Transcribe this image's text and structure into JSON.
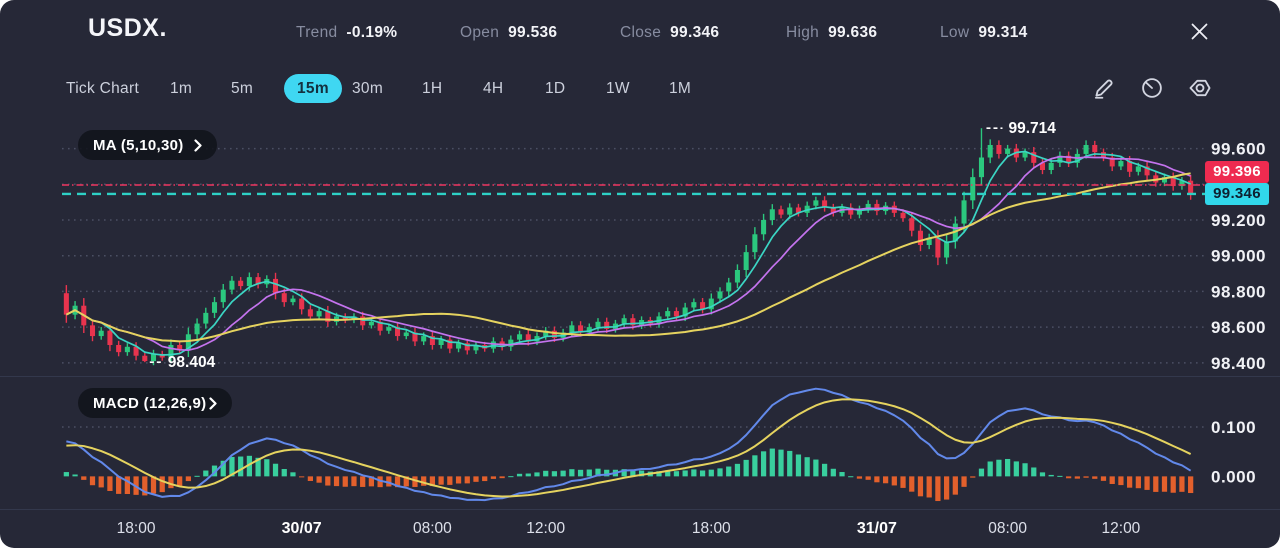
{
  "header": {
    "title": "USDX.",
    "stats": [
      {
        "label": "Trend",
        "value": "-0.19%"
      },
      {
        "label": "Open",
        "value": "99.536"
      },
      {
        "label": "Close",
        "value": "99.346"
      },
      {
        "label": "High",
        "value": "99.636"
      },
      {
        "label": "Low",
        "value": "99.314"
      }
    ],
    "close_icon": "close-icon"
  },
  "toolbar": {
    "timeframes": [
      "Tick Chart",
      "1m",
      "5m",
      "15m",
      "30m",
      "1H",
      "4H",
      "1D",
      "1W",
      "1M"
    ],
    "active": "15m",
    "icons": [
      "edit-pencil-icon",
      "gauge-icon",
      "settings-gear-icon"
    ]
  },
  "price_panel": {
    "ma_label": "MA (5,10,30)",
    "axis_labels": [
      "99.600",
      "99.400",
      "99.200",
      "99.000",
      "98.800",
      "98.600",
      "98.400"
    ],
    "badges": [
      {
        "value": "99.396",
        "style": "red"
      },
      {
        "value": "99.346",
        "style": "cyan"
      }
    ],
    "annotations": {
      "high": "99.714",
      "low": "98.404"
    }
  },
  "macd_panel": {
    "label": "MACD (12,26,9)",
    "axis_labels": [
      "0.100",
      "0.000"
    ]
  },
  "time_axis": {
    "ticks": [
      {
        "label": "18:00",
        "index": 8,
        "bold": false
      },
      {
        "label": "30/07",
        "index": 27,
        "bold": true
      },
      {
        "label": "08:00",
        "index": 42,
        "bold": false
      },
      {
        "label": "12:00",
        "index": 55,
        "bold": false
      },
      {
        "label": "18:00",
        "index": 74,
        "bold": false
      },
      {
        "label": "31/07",
        "index": 93,
        "bold": true
      },
      {
        "label": "08:00",
        "index": 108,
        "bold": false
      },
      {
        "label": "12:00",
        "index": 121,
        "bold": false
      }
    ]
  },
  "colors": {
    "background": "#262837",
    "candle_up": "#2bc87e",
    "candle_down": "#e8344e",
    "ma5": "#3bd6c4",
    "ma10": "#c473ee",
    "ma30": "#e5d35f",
    "macd_dif": "#6289ea",
    "macd_dea": "#e5d35f",
    "hist_up": "#39cf9e",
    "hist_down": "#e3602c",
    "badge_red": "#ee2b50",
    "badge_cyan": "#31d7ea",
    "ref_red": "#ef3560",
    "ref_cyan": "#2ed1c6",
    "active_tab": "#3fd7f2",
    "grid": "#8a90aa"
  },
  "chart_data": {
    "type": "candlestick",
    "symbol": "USDX",
    "interval": "15m",
    "first_open": 98.79,
    "closes": [
      98.67,
      98.72,
      98.61,
      98.55,
      98.58,
      98.5,
      98.46,
      98.49,
      98.44,
      98.41,
      98.45,
      98.43,
      98.5,
      98.47,
      98.56,
      98.62,
      98.68,
      98.74,
      98.81,
      98.86,
      98.83,
      98.88,
      98.84,
      98.87,
      98.79,
      98.74,
      98.76,
      98.7,
      98.66,
      98.69,
      98.63,
      98.66,
      98.64,
      98.66,
      98.61,
      98.63,
      98.58,
      98.6,
      98.55,
      98.57,
      98.52,
      98.55,
      98.5,
      98.53,
      98.48,
      98.51,
      98.47,
      98.5,
      98.48,
      98.52,
      98.49,
      98.53,
      98.56,
      98.52,
      98.55,
      98.58,
      98.54,
      98.57,
      98.61,
      98.57,
      98.6,
      98.63,
      98.59,
      98.62,
      98.65,
      98.61,
      98.64,
      98.62,
      98.66,
      98.69,
      98.66,
      98.71,
      98.74,
      98.7,
      98.76,
      98.8,
      98.85,
      98.92,
      99.02,
      99.12,
      99.2,
      99.26,
      99.23,
      99.27,
      99.24,
      99.28,
      99.31,
      99.27,
      99.24,
      99.27,
      99.23,
      99.26,
      99.29,
      99.25,
      99.28,
      99.24,
      99.21,
      99.14,
      99.06,
      99.1,
      98.99,
      99.08,
      99.18,
      99.31,
      99.44,
      99.55,
      99.62,
      99.57,
      99.6,
      99.55,
      99.58,
      99.52,
      99.48,
      99.52,
      99.56,
      99.52,
      99.57,
      99.62,
      99.58,
      99.55,
      99.5,
      99.53,
      99.47,
      99.5,
      99.45,
      99.41,
      99.44,
      99.39,
      99.42,
      99.346
    ],
    "high_marker": {
      "index": 105,
      "value": 99.714
    },
    "low_marker": {
      "index": 9,
      "value": 98.404
    },
    "price_gridlines": [
      99.6,
      99.4,
      99.2,
      99.0,
      98.8,
      98.6,
      98.4
    ],
    "reference_lines": [
      {
        "value": 99.396,
        "color_key": "ref_red",
        "dash": "7 3 1.5 3",
        "width": 1.6
      },
      {
        "value": 99.346,
        "color_key": "ref_cyan",
        "dash": "9 6",
        "width": 2.4
      }
    ],
    "ma_periods": [
      5,
      10,
      30
    ],
    "macd_params": [
      12,
      26,
      9
    ],
    "macd_gridlines": [
      0.1
    ],
    "macd_axis_values": [
      0.1,
      0.0
    ],
    "price_domain": [
      98.36,
      99.76
    ],
    "macd_domain": [
      -0.06,
      0.185
    ]
  }
}
